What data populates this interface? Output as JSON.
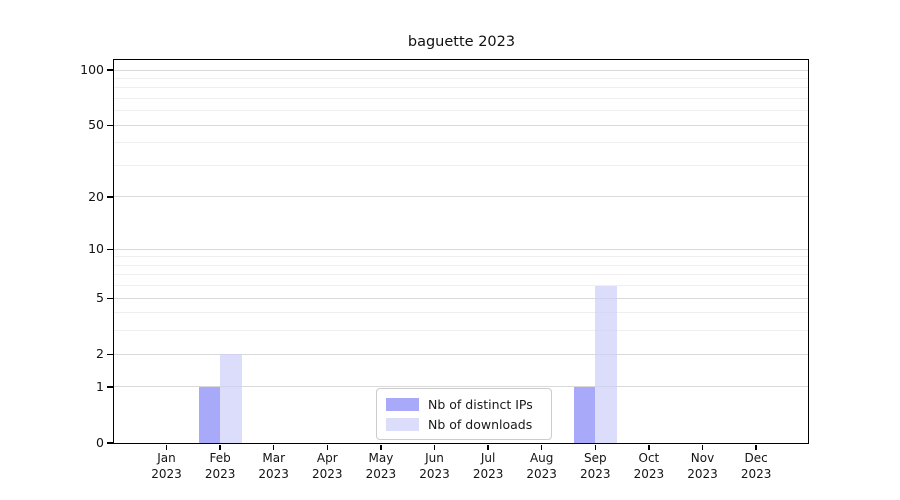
{
  "title": "baguette 2023",
  "chart_data": {
    "type": "bar",
    "title": "baguette 2023",
    "categories": [
      "Jan 2023",
      "Feb 2023",
      "Mar 2023",
      "Apr 2023",
      "May 2023",
      "Jun 2023",
      "Jul 2023",
      "Aug 2023",
      "Sep 2023",
      "Oct 2023",
      "Nov 2023",
      "Dec 2023"
    ],
    "series": [
      {
        "name": "Nb of distinct IPs",
        "color": "#a9a9f8",
        "fill": "rgba(133,133,246,0.7)",
        "values": [
          0,
          1,
          0,
          0,
          0,
          0,
          0,
          0,
          1,
          0,
          0,
          0
        ]
      },
      {
        "name": "Nb of downloads",
        "color": "#dcdcfa",
        "fill": "rgba(205,205,250,0.7)",
        "values": [
          0,
          2,
          0,
          0,
          0,
          0,
          0,
          0,
          6,
          0,
          0,
          0
        ]
      }
    ],
    "yscale": "log1p",
    "ylim": [
      0,
      115
    ],
    "y_major_ticks": [
      0,
      1,
      2,
      5,
      10,
      20,
      50,
      100
    ],
    "y_minor_ticks": [
      3,
      4,
      6,
      7,
      8,
      9,
      30,
      40,
      60,
      70,
      80,
      90
    ],
    "grid": true,
    "legend_position": "lower center inside axes"
  },
  "colors": {
    "grid_major": "#d9d9d9",
    "grid_minor": "#efefef",
    "axis": "#000000",
    "background": "#ffffff",
    "legend_border": "#cccccc",
    "text": "#141414"
  }
}
